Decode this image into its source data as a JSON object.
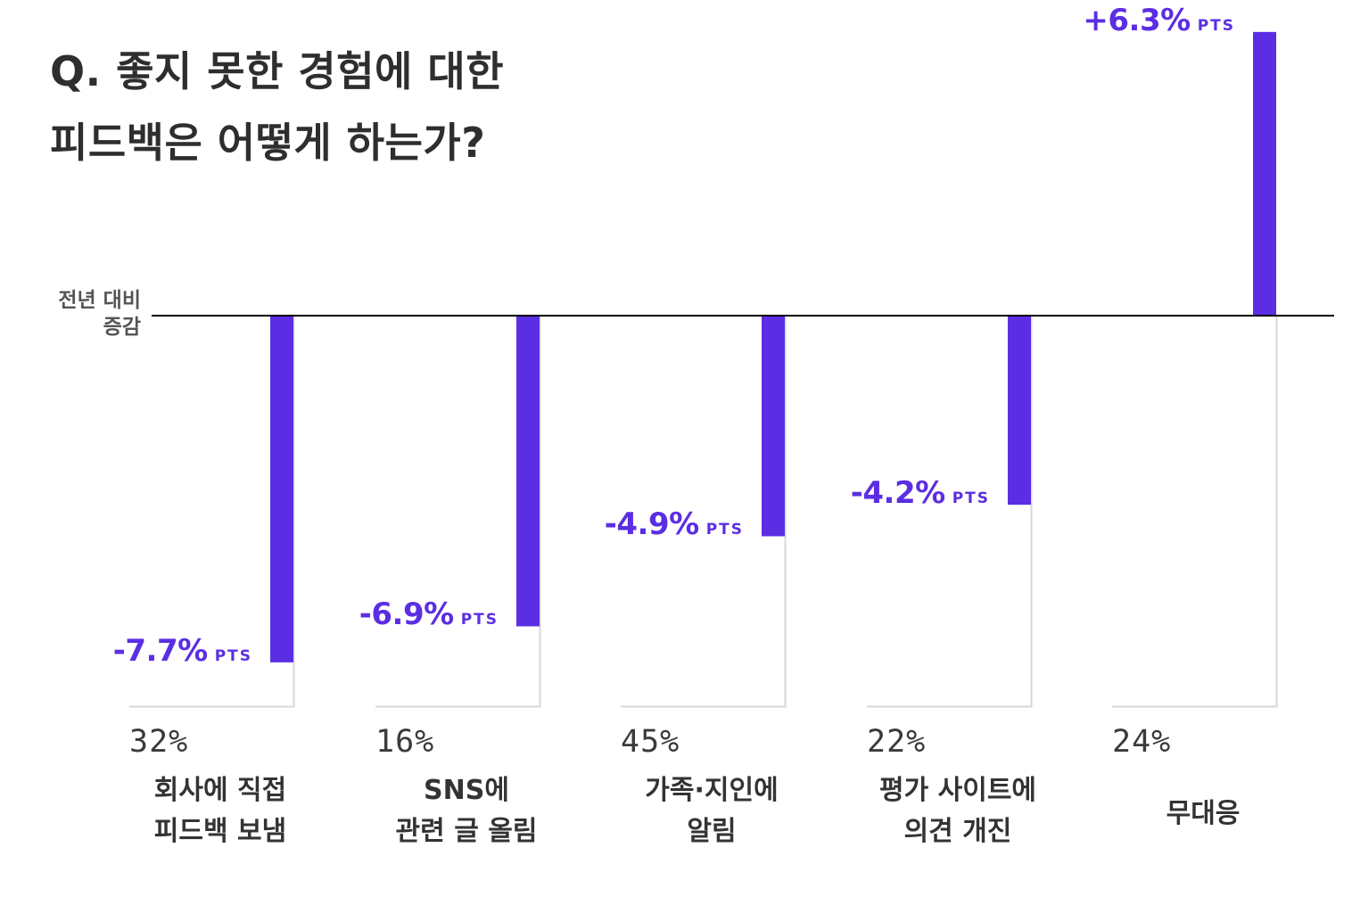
{
  "title": {
    "line1": "Q. 좋지 못한 경험에 대한",
    "line2": "피드백은 어떻게 하는가?"
  },
  "baseline_label": {
    "line1": "전년 대비",
    "line2": "증감"
  },
  "unit": "PTS",
  "colors": {
    "bar": "#5b2ee3",
    "axis": "#000000",
    "guide": "#d4d7dc",
    "value_text": "#5b2ee3"
  },
  "chart_data": {
    "type": "bar",
    "ylabel": "전년 대비 증감",
    "unit": "PTS",
    "ylim": [
      -8.5,
      6.3
    ],
    "categories": [
      {
        "label_line1": "회사에 직접",
        "label_line2": "피드백 보냄",
        "share": "32%",
        "change": -7.7,
        "change_text": "-7.7%"
      },
      {
        "label_line1": "SNS에",
        "label_line2": "관련 글 올림",
        "share": "16%",
        "change": -6.9,
        "change_text": "-6.9%"
      },
      {
        "label_line1": "가족·지인에",
        "label_line2": "알림",
        "share": "45%",
        "change": -4.9,
        "change_text": "-4.9%"
      },
      {
        "label_line1": "평가 사이트에",
        "label_line2": "의견 개진",
        "share": "22%",
        "change": -4.2,
        "change_text": "-4.2%"
      },
      {
        "label_line1": "무대응",
        "label_line2": "",
        "share": "24%",
        "change": 6.3,
        "change_text": "+6.3%"
      }
    ]
  }
}
